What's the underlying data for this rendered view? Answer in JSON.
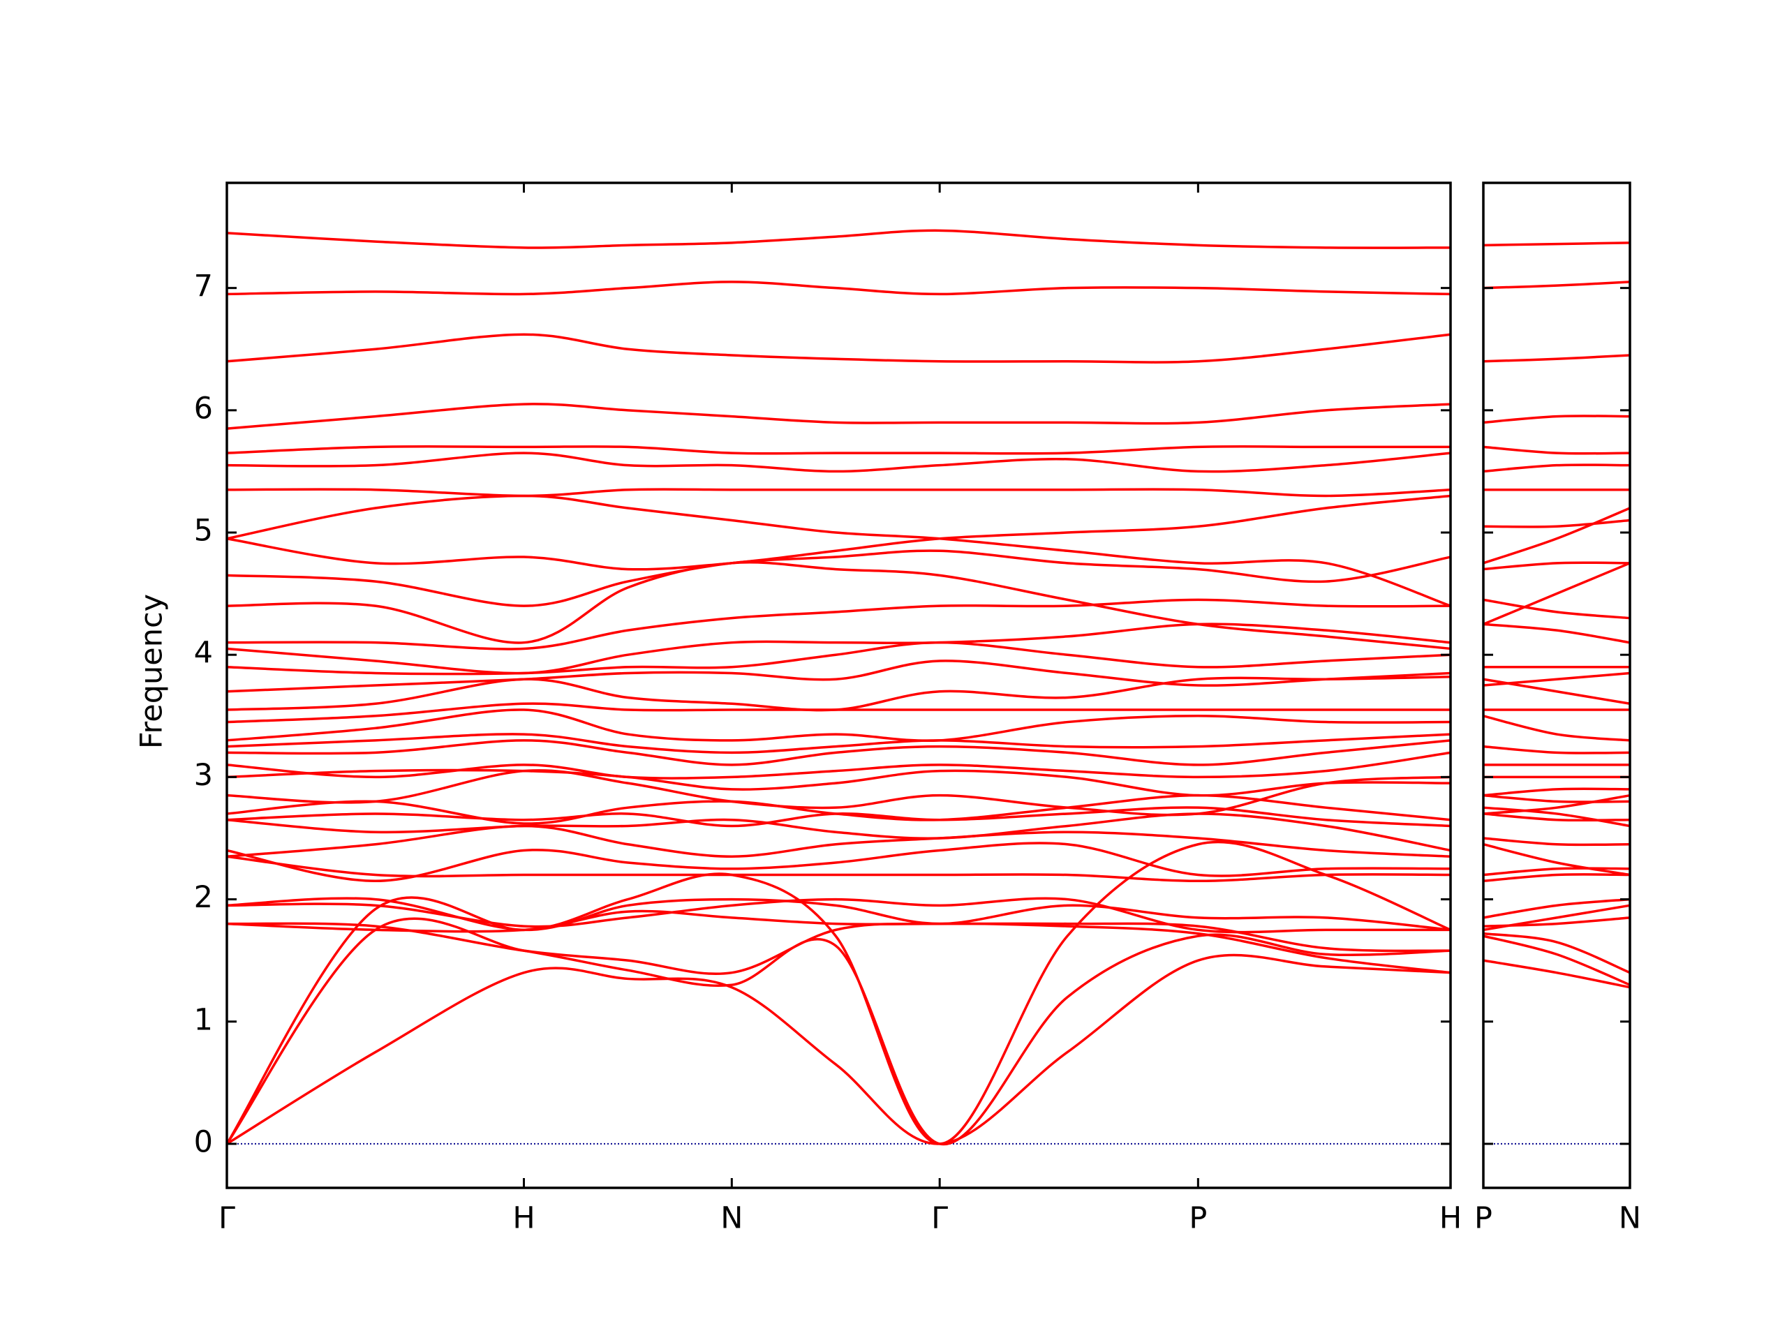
{
  "chart_data": [
    {
      "type": "line",
      "ylabel": "Frequency",
      "color": "#ff0000",
      "zero_line_color": "#00008b",
      "xlim": [
        0,
        4.12
      ],
      "ylim": [
        -0.36,
        7.86
      ],
      "xticks": [
        {
          "value": 0,
          "label": "Γ"
        },
        {
          "value": 1,
          "label": "H"
        },
        {
          "value": 1.7,
          "label": "N"
        },
        {
          "value": 2.4,
          "label": "Γ"
        },
        {
          "value": 3.27,
          "label": "P"
        },
        {
          "value": 4.12,
          "label": "H"
        }
      ],
      "yticks": [
        0,
        1,
        2,
        3,
        4,
        5,
        6,
        7
      ],
      "x": [
        0,
        0.5,
        1,
        1.35,
        1.7,
        2.05,
        2.4,
        2.83,
        3.27,
        3.7,
        4.12
      ],
      "series": [
        {
          "values": [
            0,
            0.75,
            1.4,
            1.35,
            1.28,
            0.65,
            0,
            0.75,
            1.5,
            1.45,
            1.4
          ]
        },
        {
          "values": [
            0,
            1.75,
            1.58,
            1.42,
            1.3,
            1.62,
            0,
            1.2,
            1.7,
            1.55,
            1.58
          ]
        },
        {
          "values": [
            0,
            1.92,
            1.75,
            2.0,
            2.2,
            1.7,
            0,
            1.7,
            2.45,
            2.2,
            1.75
          ]
        },
        {
          "values": [
            1.8,
            1.78,
            1.58,
            1.5,
            1.4,
            1.75,
            1.8,
            1.78,
            1.72,
            1.52,
            1.4
          ]
        },
        {
          "values": [
            1.8,
            1.75,
            1.75,
            1.9,
            1.85,
            1.8,
            1.8,
            1.8,
            1.78,
            1.6,
            1.58
          ]
        },
        {
          "values": [
            1.95,
            2.0,
            1.75,
            1.95,
            2.0,
            1.95,
            1.8,
            1.95,
            1.85,
            1.85,
            1.75
          ]
        },
        {
          "values": [
            1.95,
            1.95,
            1.78,
            1.85,
            1.95,
            2.0,
            1.95,
            2.0,
            1.75,
            1.75,
            1.75
          ]
        },
        {
          "values": [
            2.35,
            2.2,
            2.2,
            2.2,
            2.2,
            2.2,
            2.2,
            2.2,
            2.15,
            2.2,
            2.2
          ]
        },
        {
          "values": [
            2.4,
            2.15,
            2.4,
            2.3,
            2.25,
            2.3,
            2.4,
            2.45,
            2.2,
            2.25,
            2.25
          ]
        },
        {
          "values": [
            2.35,
            2.45,
            2.6,
            2.45,
            2.35,
            2.45,
            2.5,
            2.55,
            2.5,
            2.4,
            2.35
          ]
        },
        {
          "values": [
            2.65,
            2.55,
            2.6,
            2.6,
            2.65,
            2.55,
            2.5,
            2.6,
            2.7,
            2.6,
            2.4
          ]
        },
        {
          "values": [
            2.65,
            2.7,
            2.65,
            2.7,
            2.6,
            2.7,
            2.65,
            2.7,
            2.75,
            2.65,
            2.6
          ]
        },
        {
          "values": [
            2.7,
            2.8,
            2.62,
            2.75,
            2.8,
            2.7,
            2.65,
            2.75,
            2.85,
            2.75,
            2.65
          ]
        },
        {
          "values": [
            2.85,
            2.8,
            3.05,
            2.95,
            2.8,
            2.75,
            2.85,
            2.75,
            2.7,
            2.95,
            3.0
          ]
        },
        {
          "values": [
            3.0,
            3.05,
            3.05,
            3.0,
            2.9,
            2.95,
            3.05,
            3.0,
            2.85,
            2.95,
            2.95
          ]
        },
        {
          "values": [
            3.1,
            3.0,
            3.1,
            3.0,
            3.0,
            3.05,
            3.1,
            3.05,
            3.0,
            3.05,
            3.2
          ]
        },
        {
          "values": [
            3.2,
            3.2,
            3.3,
            3.2,
            3.1,
            3.2,
            3.25,
            3.2,
            3.1,
            3.2,
            3.3
          ]
        },
        {
          "values": [
            3.25,
            3.3,
            3.35,
            3.25,
            3.2,
            3.25,
            3.3,
            3.25,
            3.25,
            3.3,
            3.35
          ]
        },
        {
          "values": [
            3.3,
            3.4,
            3.55,
            3.35,
            3.3,
            3.35,
            3.3,
            3.45,
            3.5,
            3.45,
            3.45
          ]
        },
        {
          "values": [
            3.45,
            3.5,
            3.6,
            3.55,
            3.55,
            3.55,
            3.55,
            3.55,
            3.55,
            3.55,
            3.55
          ]
        },
        {
          "values": [
            3.55,
            3.6,
            3.8,
            3.65,
            3.6,
            3.55,
            3.7,
            3.65,
            3.8,
            3.8,
            3.82
          ]
        },
        {
          "values": [
            3.7,
            3.75,
            3.8,
            3.85,
            3.85,
            3.8,
            3.95,
            3.85,
            3.75,
            3.8,
            3.85
          ]
        },
        {
          "values": [
            3.9,
            3.85,
            3.85,
            3.9,
            3.9,
            4.0,
            4.1,
            4.0,
            3.9,
            3.95,
            4.0
          ]
        },
        {
          "values": [
            4.05,
            3.95,
            3.85,
            4.0,
            4.1,
            4.1,
            4.1,
            4.15,
            4.25,
            4.2,
            4.1
          ]
        },
        {
          "values": [
            4.1,
            4.1,
            4.05,
            4.2,
            4.3,
            4.35,
            4.4,
            4.4,
            4.45,
            4.4,
            4.4
          ]
        },
        {
          "values": [
            4.4,
            4.4,
            4.1,
            4.55,
            4.75,
            4.7,
            4.65,
            4.45,
            4.25,
            4.15,
            4.05
          ]
        },
        {
          "values": [
            4.65,
            4.6,
            4.4,
            4.6,
            4.75,
            4.8,
            4.85,
            4.75,
            4.7,
            4.6,
            4.8
          ]
        },
        {
          "values": [
            4.95,
            4.75,
            4.8,
            4.7,
            4.75,
            4.85,
            4.95,
            5.0,
            5.05,
            5.2,
            5.3
          ]
        },
        {
          "values": [
            4.95,
            5.2,
            5.3,
            5.2,
            5.1,
            5.0,
            4.95,
            4.85,
            4.75,
            4.75,
            4.4
          ]
        },
        {
          "values": [
            5.35,
            5.35,
            5.3,
            5.35,
            5.35,
            5.35,
            5.35,
            5.35,
            5.35,
            5.3,
            5.35
          ]
        },
        {
          "values": [
            5.55,
            5.55,
            5.65,
            5.55,
            5.55,
            5.5,
            5.55,
            5.6,
            5.5,
            5.55,
            5.65
          ]
        },
        {
          "values": [
            5.65,
            5.7,
            5.7,
            5.7,
            5.65,
            5.65,
            5.65,
            5.65,
            5.7,
            5.7,
            5.7
          ]
        },
        {
          "values": [
            5.85,
            5.95,
            6.05,
            6.0,
            5.95,
            5.9,
            5.9,
            5.9,
            5.9,
            6.0,
            6.05
          ]
        },
        {
          "values": [
            6.4,
            6.5,
            6.62,
            6.5,
            6.45,
            6.42,
            6.4,
            6.4,
            6.4,
            6.5,
            6.62
          ]
        },
        {
          "values": [
            6.95,
            6.97,
            6.95,
            7.0,
            7.05,
            7.0,
            6.95,
            7.0,
            7.0,
            6.97,
            6.95
          ]
        },
        {
          "values": [
            7.45,
            7.38,
            7.33,
            7.35,
            7.37,
            7.42,
            7.47,
            7.4,
            7.35,
            7.33,
            7.33
          ]
        }
      ]
    },
    {
      "type": "line",
      "color": "#ff0000",
      "zero_line_color": "#00008b",
      "xlim": [
        0,
        0.49
      ],
      "ylim": [
        -0.36,
        7.86
      ],
      "xticks": [
        {
          "value": 0,
          "label": "P"
        },
        {
          "value": 0.49,
          "label": "N"
        }
      ],
      "yticks": [
        0,
        1,
        2,
        3,
        4,
        5,
        6,
        7
      ],
      "x": [
        0,
        0.245,
        0.49
      ],
      "series": [
        {
          "values": [
            1.5,
            1.4,
            1.28
          ]
        },
        {
          "values": [
            1.7,
            1.55,
            1.3
          ]
        },
        {
          "values": [
            2.45,
            2.3,
            2.2
          ]
        },
        {
          "values": [
            1.72,
            1.65,
            1.4
          ]
        },
        {
          "values": [
            1.78,
            1.8,
            1.85
          ]
        },
        {
          "values": [
            1.85,
            1.95,
            2.0
          ]
        },
        {
          "values": [
            1.75,
            1.85,
            1.95
          ]
        },
        {
          "values": [
            2.15,
            2.2,
            2.2
          ]
        },
        {
          "values": [
            2.2,
            2.25,
            2.25
          ]
        },
        {
          "values": [
            2.5,
            2.45,
            2.45
          ]
        },
        {
          "values": [
            2.7,
            2.65,
            2.65
          ]
        },
        {
          "values": [
            2.75,
            2.7,
            2.6
          ]
        },
        {
          "values": [
            2.85,
            2.8,
            2.8
          ]
        },
        {
          "values": [
            2.7,
            2.75,
            2.85
          ]
        },
        {
          "values": [
            2.85,
            2.9,
            2.9
          ]
        },
        {
          "values": [
            3.0,
            3.0,
            3.0
          ]
        },
        {
          "values": [
            3.1,
            3.1,
            3.1
          ]
        },
        {
          "values": [
            3.25,
            3.2,
            3.2
          ]
        },
        {
          "values": [
            3.5,
            3.35,
            3.3
          ]
        },
        {
          "values": [
            3.55,
            3.55,
            3.55
          ]
        },
        {
          "values": [
            3.8,
            3.7,
            3.6
          ]
        },
        {
          "values": [
            3.75,
            3.8,
            3.85
          ]
        },
        {
          "values": [
            3.9,
            3.9,
            3.9
          ]
        },
        {
          "values": [
            4.25,
            4.2,
            4.1
          ]
        },
        {
          "values": [
            4.45,
            4.35,
            4.3
          ]
        },
        {
          "values": [
            4.25,
            4.5,
            4.75
          ]
        },
        {
          "values": [
            4.7,
            4.75,
            4.75
          ]
        },
        {
          "values": [
            5.05,
            5.05,
            5.1
          ]
        },
        {
          "values": [
            4.75,
            4.95,
            5.2
          ]
        },
        {
          "values": [
            5.35,
            5.35,
            5.35
          ]
        },
        {
          "values": [
            5.5,
            5.55,
            5.55
          ]
        },
        {
          "values": [
            5.7,
            5.65,
            5.65
          ]
        },
        {
          "values": [
            5.9,
            5.95,
            5.95
          ]
        },
        {
          "values": [
            6.4,
            6.42,
            6.45
          ]
        },
        {
          "values": [
            7.0,
            7.02,
            7.05
          ]
        },
        {
          "values": [
            7.35,
            7.36,
            7.37
          ]
        }
      ]
    }
  ]
}
